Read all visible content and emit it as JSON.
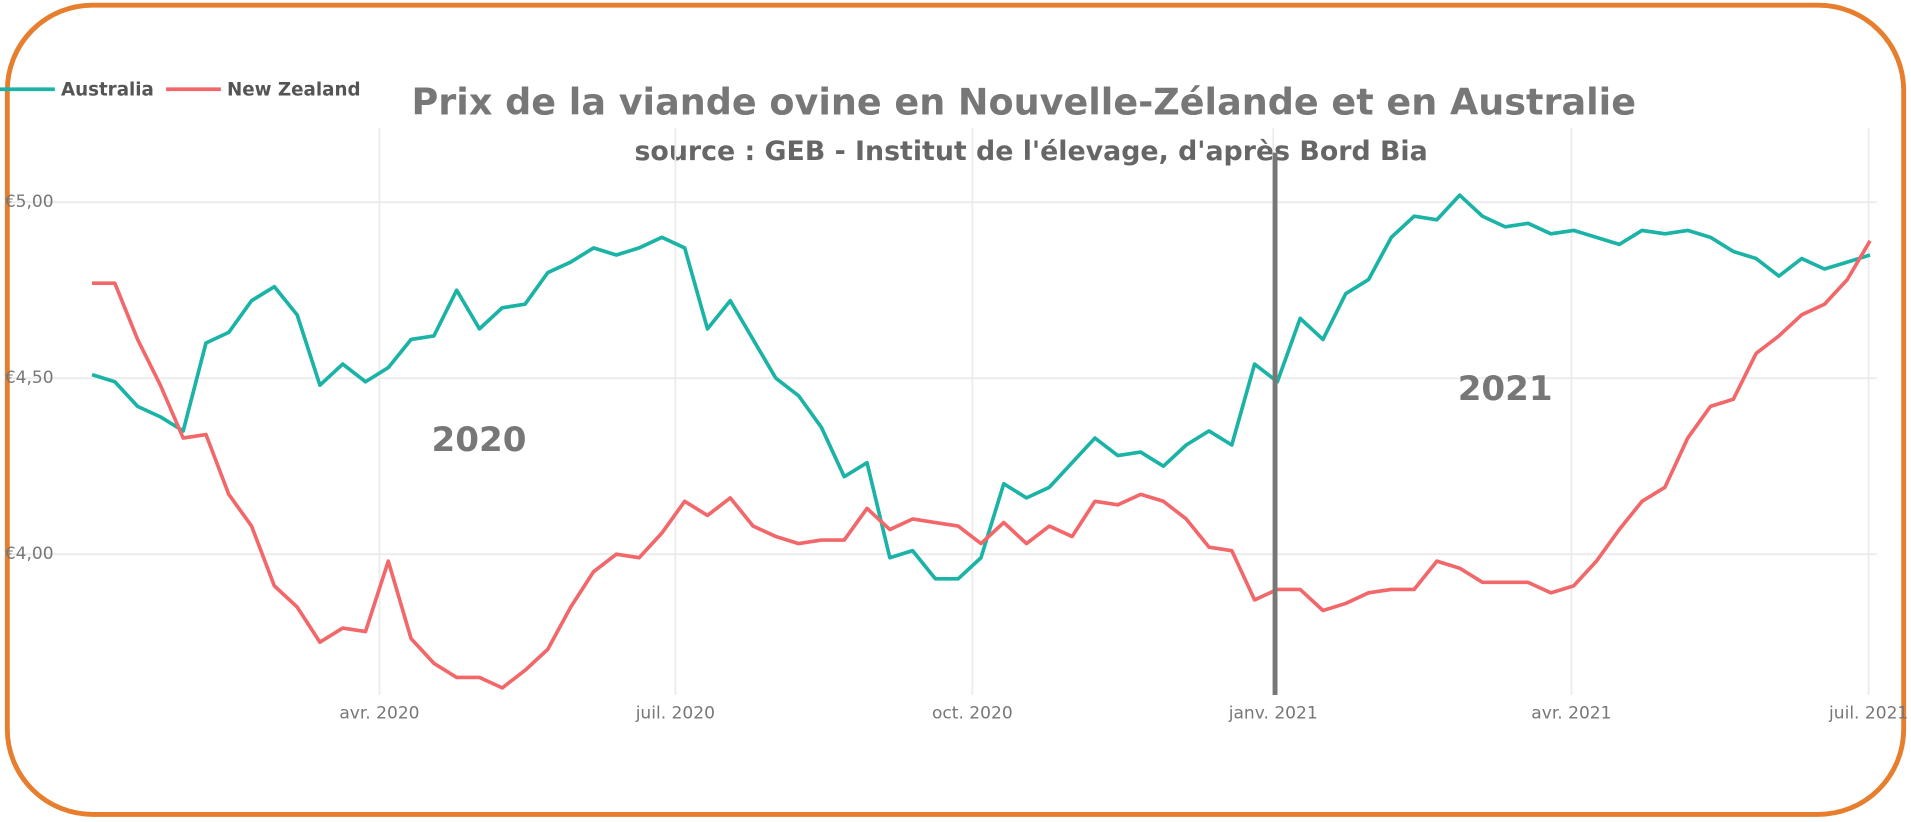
{
  "chart_data": {
    "type": "line",
    "title": "Prix de la viande ovine en Nouvelle-Zélande et en Australie",
    "subtitle": "source : GEB - Institut de l'élevage, d'après Bord Bia",
    "annotations": [
      "2020",
      "2021"
    ],
    "reference_line_x": 51.9,
    "legend": "top-left",
    "grid": true,
    "xlim": [
      -3.5,
      78.3
    ],
    "xticks": [
      {
        "value": 12.61,
        "label": "avr. 2020"
      },
      {
        "value": 25.59,
        "label": "juil. 2020"
      },
      {
        "value": 38.62,
        "label": "oct. 2020"
      },
      {
        "value": 51.82,
        "label": "janv. 2021"
      },
      {
        "value": 64.9,
        "label": "avr. 2021"
      },
      {
        "value": 77.94,
        "label": "juil. 2021"
      }
    ],
    "ylim": [
      3.6,
      5.21
    ],
    "yticks": [
      {
        "value": 4,
        "label": "€4,00"
      },
      {
        "value": 4.5,
        "label": "€4,50"
      },
      {
        "value": 5,
        "label": "€5,00"
      }
    ],
    "series": [
      {
        "name": "Australia",
        "color": "#1ab3a6",
        "values": [
          4.51,
          4.49,
          4.42,
          4.39,
          4.35,
          4.6,
          4.63,
          4.72,
          4.76,
          4.68,
          4.48,
          4.54,
          4.49,
          4.53,
          4.61,
          4.62,
          4.75,
          4.64,
          4.7,
          4.71,
          4.8,
          4.83,
          4.87,
          4.85,
          4.87,
          4.9,
          4.87,
          4.64,
          4.72,
          4.61,
          4.5,
          4.45,
          4.36,
          4.22,
          4.26,
          3.99,
          4.01,
          3.93,
          3.93,
          3.99,
          4.2,
          4.16,
          4.19,
          4.26,
          4.33,
          4.28,
          4.29,
          4.25,
          4.31,
          4.35,
          4.31,
          4.54,
          4.49,
          4.67,
          4.61,
          4.74,
          4.78,
          4.9,
          4.96,
          4.95,
          5.02,
          4.96,
          4.93,
          4.94,
          4.91,
          4.92,
          4.9,
          4.88,
          4.92,
          4.91,
          4.92,
          4.9,
          4.86,
          4.84,
          4.79,
          4.84,
          4.81,
          4.83,
          4.85
        ]
      },
      {
        "name": "New Zealand",
        "color": "#f2686a",
        "values": [
          4.77,
          4.77,
          4.61,
          4.48,
          4.33,
          4.34,
          4.17,
          4.08,
          3.91,
          3.85,
          3.75,
          3.79,
          3.78,
          3.98,
          3.76,
          3.69,
          3.65,
          3.65,
          3.62,
          3.67,
          3.73,
          3.85,
          3.95,
          4.0,
          3.99,
          4.06,
          4.15,
          4.11,
          4.16,
          4.08,
          4.05,
          4.03,
          4.04,
          4.04,
          4.13,
          4.07,
          4.1,
          4.09,
          4.08,
          4.03,
          4.09,
          4.03,
          4.08,
          4.05,
          4.15,
          4.14,
          4.17,
          4.15,
          4.1,
          4.02,
          4.01,
          3.87,
          3.9,
          3.9,
          3.84,
          3.86,
          3.89,
          3.9,
          3.9,
          3.98,
          3.96,
          3.92,
          3.92,
          3.92,
          3.89,
          3.91,
          3.98,
          4.07,
          4.15,
          4.19,
          4.33,
          4.42,
          4.44,
          4.57,
          4.62,
          4.68,
          4.71,
          4.78,
          4.89
        ]
      }
    ]
  }
}
